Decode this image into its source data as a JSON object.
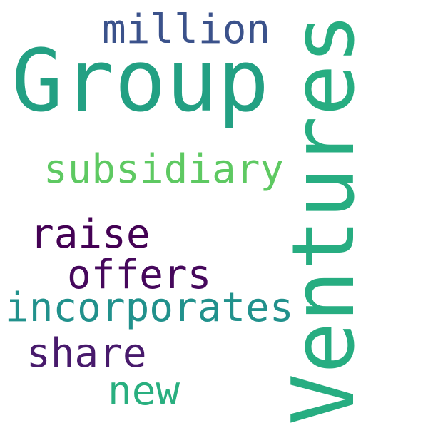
{
  "word_cloud": {
    "background_color": "#ffffff",
    "words": {
      "group": {
        "text": "Group",
        "color": "#23a083"
      },
      "ventures": {
        "text": "Ventures",
        "color": "#27ad81"
      },
      "million": {
        "text": "million",
        "color": "#3b528b"
      },
      "subsidiary": {
        "text": "subsidiary",
        "color": "#5ec962"
      },
      "raise": {
        "text": "raise",
        "color": "#440154"
      },
      "offers": {
        "text": "offers",
        "color": "#46085c"
      },
      "incorporates": {
        "text": "incorporates",
        "color": "#21918c"
      },
      "share": {
        "text": "share",
        "color": "#481a6c"
      },
      "new": {
        "text": "new",
        "color": "#29af7f"
      }
    }
  }
}
